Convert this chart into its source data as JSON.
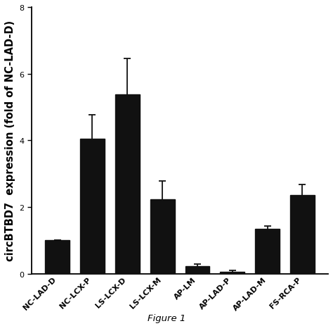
{
  "categories": [
    "NC-LAD-D",
    "NC-LCX-P",
    "LS-LCX-D",
    "LS-LCX-M",
    "AP-LM",
    "AP-LAD-P",
    "AP-LAD-M",
    "FS-RCA-P"
  ],
  "values": [
    1.0,
    4.05,
    5.38,
    2.22,
    0.22,
    0.05,
    1.35,
    2.35
  ],
  "errors": [
    0.0,
    0.72,
    1.08,
    0.55,
    0.06,
    0.04,
    0.08,
    0.32
  ],
  "bar_color": "#111111",
  "error_color": "#111111",
  "ylabel": "circBTBD7  expression (fold of NC-LAD-D)",
  "ylim": [
    0,
    8
  ],
  "yticks": [
    0,
    2,
    4,
    6,
    8
  ],
  "caption": "Figure 1",
  "bar_width": 0.7,
  "background_color": "#ffffff",
  "ylabel_fontsize": 10.5,
  "tick_fontsize": 8.0,
  "caption_fontsize": 9.5,
  "capsize": 3.5
}
